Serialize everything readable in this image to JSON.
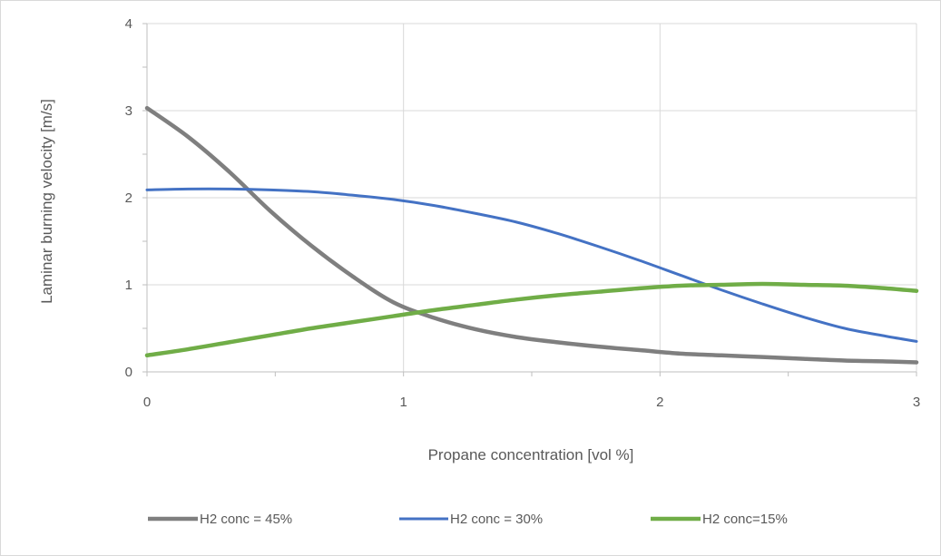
{
  "chart_data": {
    "type": "line",
    "title": "",
    "xlabel": "Propane concentration [vol %]",
    "ylabel": "Laminar burning velocity [m/s]",
    "xlim": [
      0,
      3
    ],
    "ylim": [
      0,
      4
    ],
    "x_ticks": [
      "0",
      "1",
      "2",
      "3"
    ],
    "y_ticks": [
      "0",
      "1",
      "2",
      "3",
      "4"
    ],
    "grid": true,
    "legend_position": "bottom",
    "series": [
      {
        "name": "H2 conc = 45%",
        "color": "#7f7f7f",
        "x": [
          0,
          0.16,
          0.32,
          0.48,
          0.64,
          0.8,
          0.96,
          1.12,
          1.28,
          1.44,
          1.6,
          1.76,
          1.92,
          2.08,
          2.24,
          2.4,
          2.56,
          2.72,
          2.88,
          3.0
        ],
        "y": [
          3.03,
          2.7,
          2.3,
          1.85,
          1.45,
          1.1,
          0.8,
          0.62,
          0.49,
          0.4,
          0.34,
          0.29,
          0.25,
          0.21,
          0.19,
          0.17,
          0.15,
          0.13,
          0.12,
          0.11
        ]
      },
      {
        "name": "H2 conc = 30%",
        "color": "#4472c4",
        "x": [
          0,
          0.16,
          0.32,
          0.48,
          0.64,
          0.8,
          0.96,
          1.12,
          1.28,
          1.44,
          1.6,
          1.76,
          1.92,
          2.08,
          2.24,
          2.4,
          2.56,
          2.72,
          2.88,
          3.0
        ],
        "y": [
          2.09,
          2.1,
          2.1,
          2.09,
          2.07,
          2.03,
          1.98,
          1.91,
          1.82,
          1.72,
          1.59,
          1.44,
          1.28,
          1.11,
          0.94,
          0.78,
          0.63,
          0.5,
          0.41,
          0.35
        ]
      },
      {
        "name": "H2 conc=15%",
        "color": "#70ad47",
        "x": [
          0,
          0.16,
          0.32,
          0.48,
          0.64,
          0.8,
          0.96,
          1.12,
          1.28,
          1.44,
          1.6,
          1.76,
          1.92,
          2.08,
          2.24,
          2.4,
          2.56,
          2.72,
          2.88,
          3.0
        ],
        "y": [
          0.19,
          0.26,
          0.34,
          0.42,
          0.5,
          0.57,
          0.64,
          0.71,
          0.77,
          0.83,
          0.88,
          0.92,
          0.96,
          0.99,
          1.0,
          1.01,
          1.0,
          0.99,
          0.96,
          0.93
        ]
      }
    ]
  }
}
